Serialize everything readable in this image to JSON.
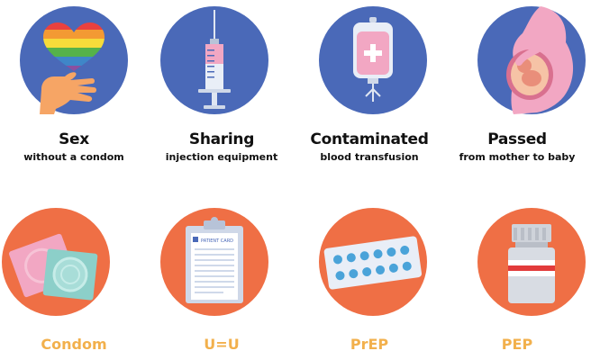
{
  "transmission": [
    {
      "title": "Sex",
      "subtitle": "without a condom",
      "icon": "rainbow-heart-hand-icon"
    },
    {
      "title": "Sharing",
      "subtitle": "injection equipment",
      "icon": "syringe-icon"
    },
    {
      "title": "Contaminated",
      "subtitle": "blood transfusion",
      "icon": "blood-bag-icon"
    },
    {
      "title": "Passed",
      "subtitle": "from mother to baby",
      "icon": "pregnancy-icon"
    }
  ],
  "prevention": [
    {
      "label": "Condom",
      "icon": "condom-icon"
    },
    {
      "label": "U=U",
      "icon": "patient-card-clipboard-icon"
    },
    {
      "label": "PrEP",
      "icon": "pill-blister-pack-icon"
    },
    {
      "label": "PEP",
      "icon": "medicine-bottle-icon"
    }
  ],
  "icon_text": {
    "patient_card": "PATIENT CARD"
  },
  "colors": {
    "transmission_circle": "#4a69b8",
    "prevention_circle": "#ef6f45",
    "prevention_label": "#f2b04c",
    "pink": "#f2a7c3"
  }
}
